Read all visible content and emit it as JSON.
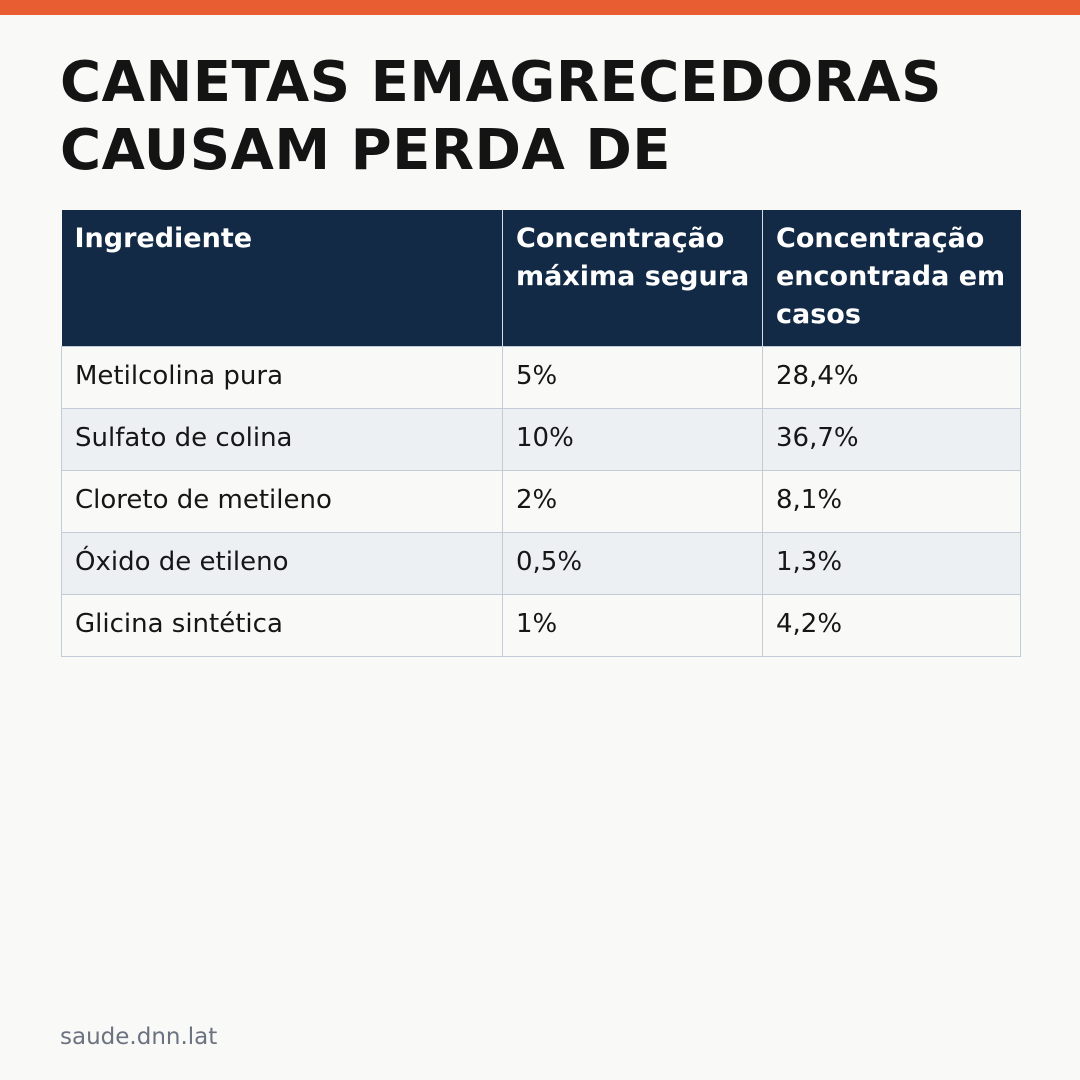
{
  "colors": {
    "accent_bar": "#e85d32",
    "header_bg": "#122a45",
    "row_alt_bg": "#edf0f3"
  },
  "title": "CANETAS EMAGRECEDORAS CAUSAM PERDA DE",
  "table": {
    "columns": [
      "Ingrediente",
      "Concentração máxima segura",
      "Concentração encontrada em casos"
    ],
    "rows": [
      [
        "Metilcolina pura",
        "5%",
        "28,4%"
      ],
      [
        "Sulfato de colina",
        "10%",
        "36,7%"
      ],
      [
        "Cloreto de metileno",
        "2%",
        "8,1%"
      ],
      [
        "Óxido de etileno",
        "0,5%",
        "1,3%"
      ],
      [
        "Glicina sintética",
        "1%",
        "4,2%"
      ]
    ]
  },
  "footer": {
    "source": "saude.dnn.lat"
  }
}
